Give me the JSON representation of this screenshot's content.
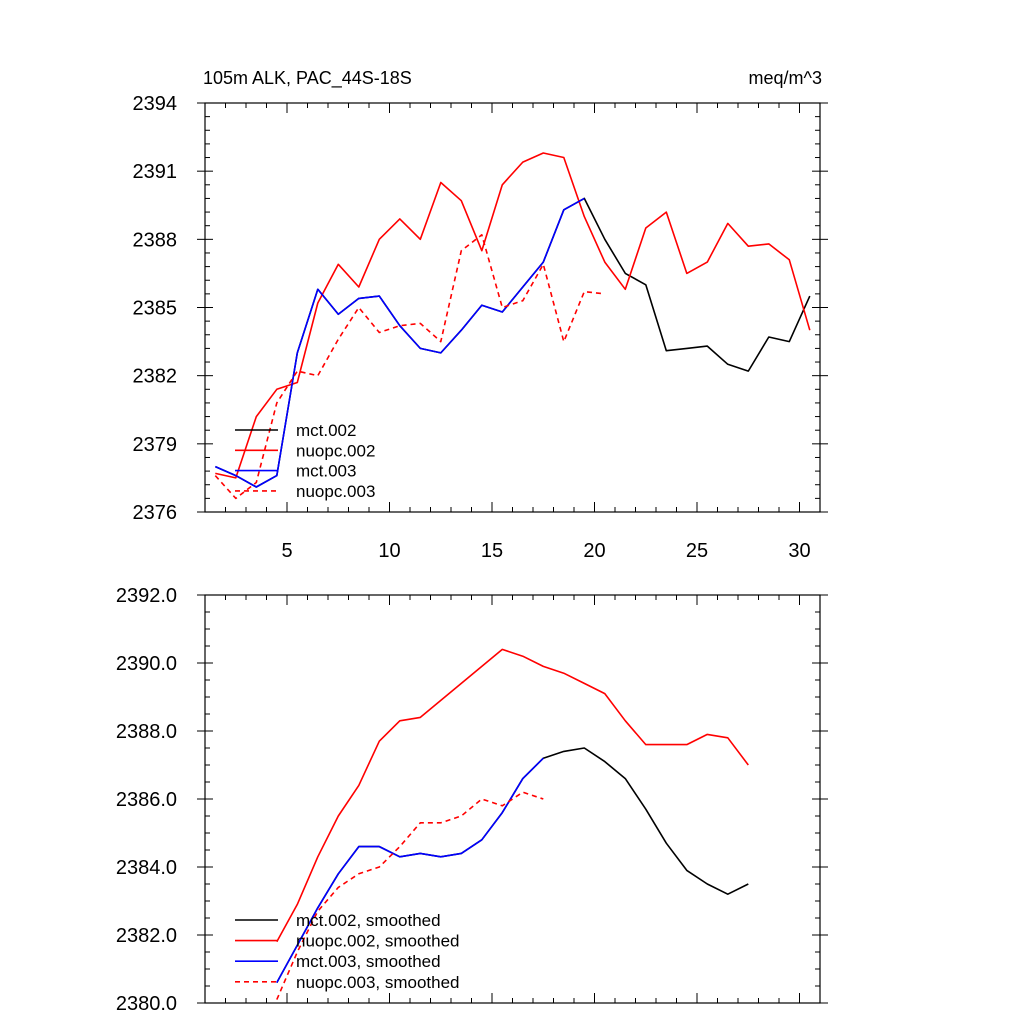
{
  "chart_data": [
    {
      "type": "line",
      "title_left": "105m ALK, PAC_44S-18S",
      "title_right": "meq/m^3",
      "xlabel": "",
      "ylabel": "",
      "xlim": [
        1,
        31
      ],
      "ylim": [
        2376,
        2394
      ],
      "xticks": [
        5,
        10,
        15,
        20,
        25,
        30
      ],
      "yticks": [
        2376,
        2379,
        2382,
        2385,
        2388,
        2391,
        2394
      ],
      "ytick_labels": [
        "2376",
        "2379",
        "2382",
        "2385",
        "2388",
        "2391",
        "2394"
      ],
      "legend_location": "bottom-left",
      "series": [
        {
          "name": "mct.002",
          "color": "#000000",
          "dash": "solid",
          "x": [
            1.5,
            2.5,
            3.5,
            4.5,
            5.5,
            6.5,
            7.5,
            8.5,
            9.5,
            10.5,
            11.5,
            12.5,
            13.5,
            14.5,
            15.5,
            16.5,
            17.5,
            18.5,
            19.5,
            20.5,
            21.5,
            22.5,
            23.5,
            24.5,
            25.5,
            26.5,
            27.5,
            28.5,
            29.5,
            30.5
          ],
          "values": [
            2378.0,
            2377.6,
            2377.1,
            2377.6,
            2383.0,
            2385.8,
            2384.7,
            2385.4,
            2385.5,
            2384.2,
            2383.2,
            2383.0,
            2384.0,
            2385.1,
            2384.8,
            2385.9,
            2387.0,
            2389.3,
            2389.8,
            2388.0,
            2386.5,
            2386.0,
            2383.1,
            2383.2,
            2383.3,
            2382.5,
            2382.2,
            2383.7,
            2383.5,
            2385.5
          ]
        },
        {
          "name": "nuopc.002",
          "color": "#ff0000",
          "dash": "solid",
          "x": [
            1.5,
            2.5,
            3.5,
            4.5,
            5.5,
            6.5,
            7.5,
            8.5,
            9.5,
            10.5,
            11.5,
            12.5,
            13.5,
            14.5,
            15.5,
            16.5,
            17.5,
            18.5,
            19.5,
            20.5,
            21.5,
            22.5,
            23.5,
            24.5,
            25.5,
            26.5,
            27.5,
            28.5,
            29.5,
            30.5
          ],
          "values": [
            2377.7,
            2377.5,
            2380.2,
            2381.4,
            2381.7,
            2385.2,
            2386.9,
            2385.9,
            2388.0,
            2388.9,
            2388.0,
            2390.5,
            2389.7,
            2387.5,
            2390.4,
            2391.4,
            2391.8,
            2391.6,
            2389.0,
            2387.0,
            2385.8,
            2388.5,
            2389.2,
            2386.5,
            2387.0,
            2388.7,
            2387.7,
            2387.8,
            2387.1,
            2384.0
          ]
        },
        {
          "name": "mct.003",
          "color": "#0000ff",
          "dash": "solid",
          "x": [
            1.5,
            2.5,
            3.5,
            4.5,
            5.5,
            6.5,
            7.5,
            8.5,
            9.5,
            10.5,
            11.5,
            12.5,
            13.5,
            14.5,
            15.5,
            16.5,
            17.5,
            18.5,
            19.5
          ],
          "values": [
            2378.0,
            2377.6,
            2377.1,
            2377.6,
            2383.0,
            2385.8,
            2384.7,
            2385.4,
            2385.5,
            2384.2,
            2383.2,
            2383.0,
            2384.0,
            2385.1,
            2384.8,
            2385.9,
            2387.0,
            2389.3,
            2389.8
          ]
        },
        {
          "name": "nuopc.003",
          "color": "#ff0000",
          "dash": "dashed",
          "x": [
            1.5,
            2.5,
            3.5,
            4.5,
            5.5,
            6.5,
            7.5,
            8.5,
            9.5,
            10.5,
            11.5,
            12.5,
            13.5,
            14.5,
            15.5,
            16.5,
            17.5,
            18.5,
            19.5,
            20.5
          ],
          "values": [
            2377.6,
            2376.6,
            2377.3,
            2380.8,
            2382.2,
            2382.0,
            2383.6,
            2385.0,
            2383.9,
            2384.2,
            2384.3,
            2383.5,
            2387.5,
            2388.2,
            2385.0,
            2385.3,
            2386.9,
            2383.5,
            2385.7,
            2385.6
          ]
        }
      ]
    },
    {
      "type": "line",
      "title_left": "",
      "title_right": "",
      "xlabel": "",
      "ylabel": "",
      "xlim": [
        1,
        31
      ],
      "ylim": [
        2380,
        2392
      ],
      "xticks": [
        5,
        10,
        15,
        20,
        25,
        30
      ],
      "yticks": [
        2380,
        2382,
        2384,
        2386,
        2388,
        2390,
        2392
      ],
      "ytick_labels": [
        "2380.0",
        "2382.0",
        "2384.0",
        "2386.0",
        "2388.0",
        "2390.0",
        "2392.0"
      ],
      "legend_location": "bottom-left",
      "series": [
        {
          "name": "mct.002, smoothed",
          "color": "#000000",
          "dash": "solid",
          "x": [
            4.5,
            5.5,
            6.5,
            7.5,
            8.5,
            9.5,
            10.5,
            11.5,
            12.5,
            13.5,
            14.5,
            15.5,
            16.5,
            17.5,
            18.5,
            19.5,
            20.5,
            21.5,
            22.5,
            23.5,
            24.5,
            25.5,
            26.5,
            27.5
          ],
          "values": [
            2380.6,
            2381.7,
            2382.8,
            2383.8,
            2384.6,
            2384.6,
            2384.3,
            2384.4,
            2384.3,
            2384.4,
            2384.8,
            2385.6,
            2386.6,
            2387.2,
            2387.4,
            2387.5,
            2387.1,
            2386.6,
            2385.7,
            2384.7,
            2383.9,
            2383.5,
            2383.2,
            2383.5
          ]
        },
        {
          "name": "nuopc.002, smoothed",
          "color": "#ff0000",
          "dash": "solid",
          "x": [
            4.5,
            5.5,
            6.5,
            7.5,
            8.5,
            9.5,
            10.5,
            11.5,
            12.5,
            13.5,
            14.5,
            15.5,
            16.5,
            17.5,
            18.5,
            19.5,
            20.5,
            21.5,
            22.5,
            23.5,
            24.5,
            25.5,
            26.5,
            27.5
          ],
          "values": [
            2381.8,
            2382.9,
            2384.3,
            2385.5,
            2386.4,
            2387.7,
            2388.3,
            2388.4,
            2388.9,
            2389.4,
            2389.9,
            2390.4,
            2390.2,
            2389.9,
            2389.7,
            2389.4,
            2389.1,
            2388.3,
            2387.6,
            2387.6,
            2387.6,
            2387.9,
            2387.8,
            2387.0
          ]
        },
        {
          "name": "mct.003, smoothed",
          "color": "#0000ff",
          "dash": "solid",
          "x": [
            4.5,
            5.5,
            6.5,
            7.5,
            8.5,
            9.5,
            10.5,
            11.5,
            12.5,
            13.5,
            14.5,
            15.5,
            16.5,
            17.5
          ],
          "values": [
            2380.6,
            2381.7,
            2382.8,
            2383.8,
            2384.6,
            2384.6,
            2384.3,
            2384.4,
            2384.3,
            2384.4,
            2384.8,
            2385.6,
            2386.6,
            2387.2
          ]
        },
        {
          "name": "nuopc.003, smoothed",
          "color": "#ff0000",
          "dash": "dashed",
          "x": [
            4.5,
            5.5,
            6.5,
            7.5,
            8.5,
            9.5,
            10.5,
            11.5,
            12.5,
            13.5,
            14.5,
            15.5,
            16.5,
            17.5
          ],
          "values": [
            2380.1,
            2381.5,
            2382.7,
            2383.4,
            2383.8,
            2384.0,
            2384.6,
            2385.3,
            2385.3,
            2385.5,
            2386.0,
            2385.8,
            2386.2,
            2386.0
          ]
        }
      ]
    }
  ]
}
